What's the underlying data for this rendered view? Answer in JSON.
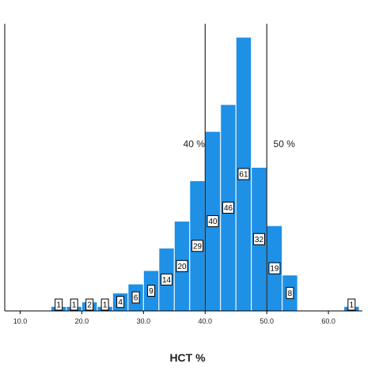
{
  "chart_data": {
    "type": "bar",
    "title": "",
    "xlabel": "HCT %",
    "ylabel": "",
    "x_ticks": [
      "10.0",
      "20.0",
      "30.0",
      "40.0",
      "50.0",
      "60.0"
    ],
    "x_tick_values": [
      10,
      20,
      30,
      40,
      50,
      60
    ],
    "xlim": [
      7.5,
      65.5
    ],
    "ylim": [
      0,
      64
    ],
    "bin_width": 2.5,
    "bins": [
      {
        "start": 15,
        "value": 1,
        "label": "1"
      },
      {
        "start": 17.5,
        "value": 1,
        "label": "1"
      },
      {
        "start": 20,
        "value": 2,
        "label": "2"
      },
      {
        "start": 22.5,
        "value": 1,
        "label": "1"
      },
      {
        "start": 25,
        "value": 4,
        "label": "4"
      },
      {
        "start": 27.5,
        "value": 6,
        "label": "6"
      },
      {
        "start": 30,
        "value": 9,
        "label": "9"
      },
      {
        "start": 32.5,
        "value": 14,
        "label": "14"
      },
      {
        "start": 35,
        "value": 20,
        "label": "20"
      },
      {
        "start": 37.5,
        "value": 29,
        "label": "29"
      },
      {
        "start": 40,
        "value": 40,
        "label": "40"
      },
      {
        "start": 42.5,
        "value": 46,
        "label": "46"
      },
      {
        "start": 45,
        "value": 61,
        "label": "61"
      },
      {
        "start": 47.5,
        "value": 32,
        "label": "32"
      },
      {
        "start": 50,
        "value": 19,
        "label": "19"
      },
      {
        "start": 52.5,
        "value": 8,
        "label": "8"
      },
      {
        "start": 62.5,
        "value": 1,
        "label": "1"
      }
    ],
    "reference_lines": [
      {
        "x": 40,
        "label": "40 %"
      },
      {
        "x": 50,
        "label": "50 %"
      }
    ],
    "bar_color": "#1e90e6",
    "bar_edge_color": "#ffffff",
    "grid": false,
    "legend": "none"
  }
}
